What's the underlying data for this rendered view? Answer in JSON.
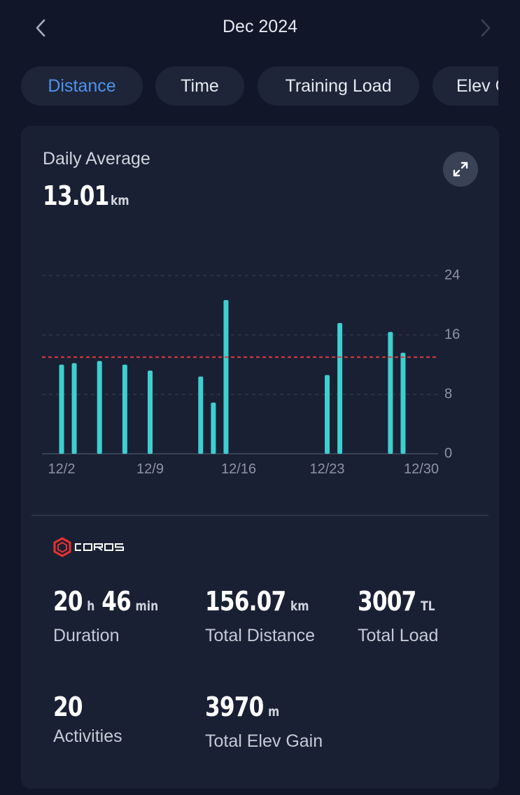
{
  "header": {
    "month": "Dec 2024",
    "prev_icon": "chevron-left-icon",
    "next_icon": "chevron-right-icon"
  },
  "tabs": [
    {
      "label": "Distance",
      "active": true
    },
    {
      "label": "Time",
      "active": false
    },
    {
      "label": "Training Load",
      "active": false
    },
    {
      "label": "Elev Gain",
      "active": false
    }
  ],
  "summary": {
    "label": "Daily Average",
    "value": "13.01",
    "unit": "km",
    "expand_icon": "expand-icon"
  },
  "chart_data": {
    "type": "bar",
    "x": [
      2,
      3,
      5,
      7,
      9,
      13,
      14,
      15,
      23,
      24,
      28,
      29
    ],
    "x_ticks": [
      "12/2",
      "12/9",
      "12/16",
      "12/23",
      "12/30"
    ],
    "x_tick_values": [
      2,
      9,
      16,
      23,
      30
    ],
    "values": [
      12.0,
      12.2,
      12.5,
      12.0,
      11.2,
      10.4,
      6.9,
      20.7,
      10.6,
      17.6,
      16.4,
      13.6
    ],
    "ylim": [
      0,
      24
    ],
    "y_ticks": [
      0,
      8,
      16,
      24
    ],
    "average_line": 13.01,
    "bar_color": "#3ecfcf",
    "average_color": "#e23b3b",
    "grid": true
  },
  "brand": {
    "name": "COROS",
    "logo_color": "#e8312e"
  },
  "stats": {
    "duration": {
      "hours": "20",
      "h_unit": "h",
      "minutes": "46",
      "min_unit": "min",
      "label": "Duration"
    },
    "distance": {
      "value": "156.07",
      "unit": "km",
      "label": "Total Distance"
    },
    "load": {
      "value": "3007",
      "unit": "TL",
      "label": "Total Load"
    },
    "activities": {
      "value": "20",
      "label": "Activities"
    },
    "elev": {
      "value": "3970",
      "unit": "m",
      "label": "Total Elev Gain"
    }
  }
}
